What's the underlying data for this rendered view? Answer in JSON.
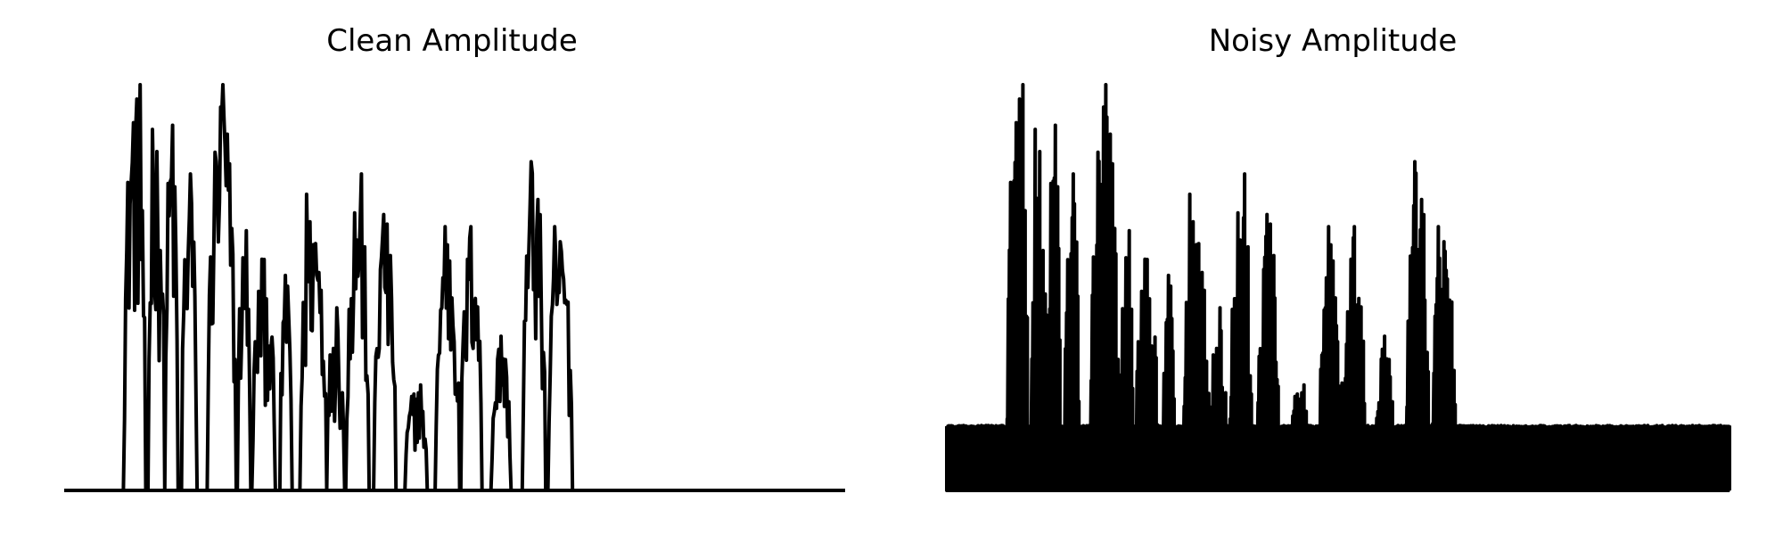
{
  "chart_data": [
    {
      "type": "line",
      "title": "Clean Amplitude",
      "xlabel": "",
      "ylabel": "",
      "axes_visible": false,
      "grid": false,
      "ylim": [
        0,
        1
      ],
      "color": "#000000",
      "bursts": [
        [
          0.076,
          0.104,
          1.0
        ],
        [
          0.107,
          0.128,
          0.89
        ],
        [
          0.129,
          0.146,
          0.9
        ],
        [
          0.15,
          0.17,
          0.78
        ],
        [
          0.183,
          0.22,
          1.0
        ],
        [
          0.222,
          0.239,
          0.64
        ],
        [
          0.24,
          0.27,
          0.57
        ],
        [
          0.275,
          0.292,
          0.53
        ],
        [
          0.302,
          0.335,
          0.73
        ],
        [
          0.336,
          0.359,
          0.45
        ],
        [
          0.36,
          0.39,
          0.78
        ],
        [
          0.395,
          0.424,
          0.68
        ],
        [
          0.436,
          0.464,
          0.26
        ],
        [
          0.474,
          0.506,
          0.65
        ],
        [
          0.507,
          0.534,
          0.65
        ],
        [
          0.545,
          0.572,
          0.38
        ],
        [
          0.585,
          0.615,
          0.81
        ],
        [
          0.618,
          0.65,
          0.65
        ]
      ]
    },
    {
      "type": "line",
      "title": "Noisy Amplitude",
      "xlabel": "",
      "ylabel": "",
      "axes_visible": false,
      "grid": false,
      "ylim": [
        0,
        1
      ],
      "color": "#000000",
      "noise_floor": 0.16,
      "bursts": [
        [
          0.076,
          0.104,
          1.0
        ],
        [
          0.107,
          0.128,
          0.89
        ],
        [
          0.129,
          0.146,
          0.9
        ],
        [
          0.15,
          0.17,
          0.78
        ],
        [
          0.183,
          0.22,
          1.0
        ],
        [
          0.222,
          0.239,
          0.64
        ],
        [
          0.24,
          0.27,
          0.57
        ],
        [
          0.275,
          0.292,
          0.53
        ],
        [
          0.302,
          0.335,
          0.73
        ],
        [
          0.336,
          0.359,
          0.45
        ],
        [
          0.36,
          0.39,
          0.78
        ],
        [
          0.395,
          0.424,
          0.68
        ],
        [
          0.436,
          0.464,
          0.26
        ],
        [
          0.474,
          0.506,
          0.65
        ],
        [
          0.507,
          0.534,
          0.65
        ],
        [
          0.545,
          0.572,
          0.38
        ],
        [
          0.585,
          0.615,
          0.81
        ],
        [
          0.618,
          0.65,
          0.65
        ]
      ]
    }
  ]
}
